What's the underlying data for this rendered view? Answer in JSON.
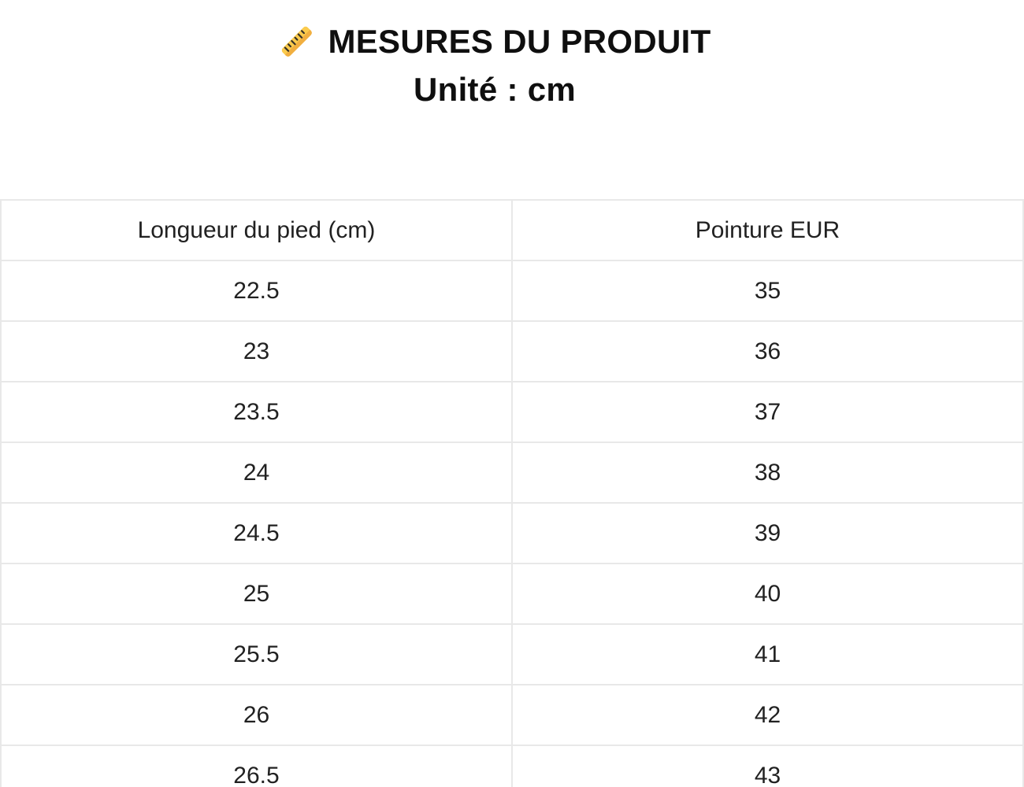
{
  "header": {
    "title": "MESURES DU PRODUIT",
    "subtitle": "Unité : cm",
    "ruler_icon": {
      "name": "ruler-icon",
      "body_color": "#fbcb4d",
      "edge_color": "#eda63c",
      "tick_color": "#33302a"
    }
  },
  "table": {
    "columns": [
      "Longueur du pied (cm)",
      "Pointure EUR"
    ],
    "rows": [
      [
        "22.5",
        "35"
      ],
      [
        "23",
        "36"
      ],
      [
        "23.5",
        "37"
      ],
      [
        "24",
        "38"
      ],
      [
        "24.5",
        "39"
      ],
      [
        "25",
        "40"
      ],
      [
        "25.5",
        "41"
      ],
      [
        "26",
        "42"
      ],
      [
        "26.5",
        "43"
      ]
    ],
    "border_color": "#e8e8e8",
    "text_color": "#212121"
  }
}
